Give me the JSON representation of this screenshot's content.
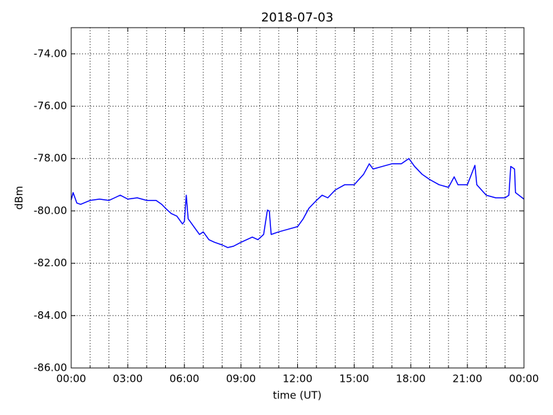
{
  "chart_data": {
    "type": "line",
    "title": "2018-07-03",
    "xlabel": "time (UT)",
    "ylabel": "dBm",
    "color": "#0000ff",
    "grid": true,
    "xlim": [
      0,
      24
    ],
    "xticks": [
      {
        "value": 0,
        "label": "00:00"
      },
      {
        "value": 3,
        "label": "03:00"
      },
      {
        "value": 6,
        "label": "06:00"
      },
      {
        "value": 9,
        "label": "09:00"
      },
      {
        "value": 12,
        "label": "12:00"
      },
      {
        "value": 15,
        "label": "15:00"
      },
      {
        "value": 18,
        "label": "18:00"
      },
      {
        "value": 21,
        "label": "21:00"
      },
      {
        "value": 24,
        "label": "00:00"
      }
    ],
    "x_minor_ticks": [
      1,
      2,
      4,
      5,
      7,
      8,
      10,
      11,
      13,
      14,
      16,
      17,
      19,
      20,
      22,
      23
    ],
    "ylim": [
      -86,
      -73
    ],
    "yticks": [
      {
        "value": -86,
        "label": "-86.00"
      },
      {
        "value": -84,
        "label": "-84.00"
      },
      {
        "value": -82,
        "label": "-82.00"
      },
      {
        "value": -80,
        "label": "-80.00"
      },
      {
        "value": -78,
        "label": "-78.00"
      },
      {
        "value": -76,
        "label": "-76.00"
      },
      {
        "value": -74,
        "label": "-74.00"
      }
    ],
    "x": [
      0,
      0.1,
      0.3,
      0.5,
      1,
      1.5,
      2,
      2.3,
      2.6,
      3,
      3.5,
      4,
      4.5,
      4.8,
      5,
      5.3,
      5.6,
      5.9,
      6,
      6.1,
      6.2,
      6.5,
      6.8,
      7,
      7.3,
      7.6,
      8,
      8.3,
      8.6,
      9,
      9.3,
      9.6,
      9.9,
      10.2,
      10.4,
      10.5,
      10.6,
      11,
      11.5,
      12,
      12.3,
      12.6,
      13,
      13.3,
      13.6,
      14,
      14.5,
      15,
      15.5,
      15.8,
      16,
      16.5,
      17,
      17.5,
      17.9,
      18.2,
      18.6,
      19,
      19.5,
      20,
      20.3,
      20.5,
      21,
      21.4,
      21.5,
      22,
      22.5,
      23,
      23.2,
      23.3,
      23.5,
      23.55,
      24
    ],
    "values": [
      -79.58,
      -79.3,
      -79.7,
      -79.75,
      -79.6,
      -79.55,
      -79.6,
      -79.5,
      -79.4,
      -79.55,
      -79.5,
      -79.6,
      -79.6,
      -79.75,
      -79.9,
      -80.1,
      -80.2,
      -80.5,
      -80.4,
      -79.4,
      -80.3,
      -80.6,
      -80.9,
      -80.8,
      -81.1,
      -81.2,
      -81.3,
      -81.4,
      -81.35,
      -81.2,
      -81.1,
      -81.0,
      -81.1,
      -80.9,
      -79.97,
      -80.0,
      -80.9,
      -80.8,
      -80.7,
      -80.6,
      -80.3,
      -79.9,
      -79.6,
      -79.4,
      -79.5,
      -79.2,
      -79.0,
      -79.0,
      -78.6,
      -78.2,
      -78.4,
      -78.3,
      -78.2,
      -78.2,
      -78.0,
      -78.3,
      -78.6,
      -78.8,
      -79.0,
      -79.1,
      -78.7,
      -79.0,
      -79.0,
      -78.26,
      -79.0,
      -79.4,
      -79.5,
      -79.5,
      -79.4,
      -78.3,
      -78.4,
      -79.3,
      -79.55
    ]
  }
}
